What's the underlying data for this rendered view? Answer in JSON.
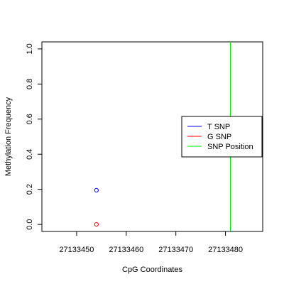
{
  "chart_data": {
    "type": "scatter",
    "xlabel": "CpG Coordinates",
    "ylabel": "Methylation Frequency",
    "xlim": [
      27133443,
      27133487.5
    ],
    "ylim": [
      -0.04,
      1.04
    ],
    "xticks": [
      27133450,
      27133460,
      27133470,
      27133480
    ],
    "xtick_labels": [
      "27133450",
      "27133460",
      "27133470",
      "27133480"
    ],
    "yticks": [
      0.0,
      0.2,
      0.4,
      0.6,
      0.8,
      1.0
    ],
    "ytick_labels": [
      "0.0",
      "0.2",
      "0.4",
      "0.6",
      "0.8",
      "1.0"
    ],
    "grid": false,
    "legend_position": "right",
    "series": [
      {
        "name": "T SNP",
        "color": "#0000ff",
        "points": [
          {
            "x": 27133454,
            "y": 0.195
          }
        ]
      },
      {
        "name": "G SNP",
        "color": "#ff0000",
        "points": [
          {
            "x": 27133454,
            "y": 0.0
          }
        ]
      }
    ],
    "vlines": [
      {
        "name": "SNP Position",
        "color": "#00dd00",
        "x": 27133481
      }
    ],
    "legend": [
      {
        "label": "T SNP",
        "color": "#0000ff"
      },
      {
        "label": "G SNP",
        "color": "#ff0000"
      },
      {
        "label": "SNP Position",
        "color": "#00dd00"
      }
    ]
  }
}
